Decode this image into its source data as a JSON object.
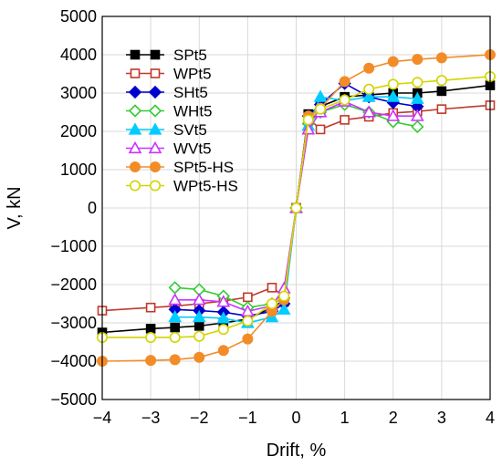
{
  "chart_data": {
    "type": "line",
    "title": "",
    "xlabel": "Drift, %",
    "ylabel": "V, kN",
    "xlim": [
      -4,
      4
    ],
    "ylim": [
      -5000,
      5000
    ],
    "xticks": [
      -4,
      -3,
      -2,
      -1,
      0,
      1,
      2,
      3,
      4
    ],
    "yticks": [
      -5000,
      -4000,
      -3000,
      -2000,
      -1000,
      0,
      1000,
      2000,
      3000,
      4000,
      5000
    ],
    "xtick_labels": [
      "−4",
      "−3",
      "−2",
      "−1",
      "0",
      "1",
      "2",
      "3",
      "4"
    ],
    "ytick_labels": [
      "−5000",
      "−4000",
      "−3000",
      "−2000",
      "−1000",
      "0",
      "1000",
      "2000",
      "3000",
      "4000",
      "5000"
    ],
    "grid": true,
    "legend_position": "top-left",
    "series": [
      {
        "name": "SPt5",
        "color": "#000000",
        "marker": "square-filled",
        "x": [
          -4,
          -3,
          -2.5,
          -2,
          -1.5,
          -1,
          -0.5,
          -0.25,
          0,
          0.25,
          0.5,
          1,
          1.5,
          2,
          2.5,
          3,
          4
        ],
        "y": [
          -3250,
          -3150,
          -3120,
          -3080,
          -3000,
          -2900,
          -2600,
          -2450,
          0,
          2450,
          2650,
          2900,
          2950,
          3000,
          3000,
          3050,
          3200
        ]
      },
      {
        "name": "WPt5",
        "color": "#c0392b",
        "marker": "square-open",
        "x": [
          -4,
          -3,
          -2.5,
          -2,
          -1.5,
          -1,
          -0.5,
          -0.25,
          0,
          0.25,
          0.5,
          1,
          1.5,
          2,
          2.5,
          3,
          4
        ],
        "y": [
          -2680,
          -2600,
          -2560,
          -2500,
          -2430,
          -2330,
          -2080,
          -2300,
          0,
          2350,
          2050,
          2300,
          2380,
          2480,
          2520,
          2580,
          2680
        ]
      },
      {
        "name": "SHt5",
        "color": "#0000cc",
        "marker": "diamond-filled",
        "x": [
          -2.5,
          -2,
          -1.5,
          -1,
          -0.5,
          -0.25,
          0,
          0.25,
          0.5,
          1,
          1.5,
          2,
          2.5
        ],
        "y": [
          -2650,
          -2680,
          -2720,
          -2820,
          -2700,
          -2500,
          0,
          2400,
          2700,
          3250,
          2900,
          2750,
          2650
        ]
      },
      {
        "name": "WHt5",
        "color": "#33cc33",
        "marker": "diamond-open",
        "x": [
          -2.5,
          -2,
          -1.5,
          -1,
          -0.5,
          -0.25,
          0,
          0.25,
          0.5,
          1,
          1.5,
          2,
          2.5
        ],
        "y": [
          -2080,
          -2130,
          -2300,
          -2600,
          -2500,
          -2350,
          0,
          2200,
          2500,
          2700,
          2500,
          2250,
          2120
        ]
      },
      {
        "name": "SVt5",
        "color": "#00ccff",
        "marker": "triangle-filled",
        "x": [
          -2.5,
          -2,
          -1.5,
          -1,
          -0.5,
          -0.25,
          0,
          0.25,
          0.5,
          1,
          1.5,
          2,
          2.5
        ],
        "y": [
          -2850,
          -2850,
          -2880,
          -3000,
          -2850,
          -2650,
          0,
          2150,
          2900,
          2800,
          2900,
          2900,
          2850
        ]
      },
      {
        "name": "WVt5",
        "color": "#cc33ff",
        "marker": "triangle-open",
        "x": [
          -2.5,
          -2,
          -1.5,
          -1,
          -0.5,
          -0.25,
          0,
          0.25,
          0.5,
          1,
          1.5,
          2,
          2.5
        ],
        "y": [
          -2400,
          -2400,
          -2450,
          -2700,
          -2550,
          -2100,
          0,
          2050,
          2500,
          2780,
          2500,
          2400,
          2400
        ]
      },
      {
        "name": "SPt5-HS",
        "color": "#f28c28",
        "marker": "circle-filled",
        "x": [
          -4,
          -3,
          -2.5,
          -2,
          -1.5,
          -1,
          -0.5,
          -0.25,
          0,
          0.25,
          0.5,
          1,
          1.5,
          2,
          2.5,
          3,
          4
        ],
        "y": [
          -4000,
          -3980,
          -3960,
          -3900,
          -3720,
          -3420,
          -2700,
          -2400,
          0,
          2400,
          2600,
          3300,
          3650,
          3820,
          3880,
          3920,
          4000
        ]
      },
      {
        "name": "WPt5-HS",
        "color": "#d4d400",
        "marker": "circle-open",
        "x": [
          -4,
          -3,
          -2.5,
          -2,
          -1.5,
          -1,
          -0.5,
          -0.25,
          0,
          0.25,
          0.5,
          1,
          1.5,
          2,
          2.5,
          3,
          4
        ],
        "y": [
          -3380,
          -3380,
          -3380,
          -3350,
          -3170,
          -2950,
          -2500,
          -2300,
          0,
          2300,
          2580,
          2820,
          3100,
          3230,
          3280,
          3330,
          3430
        ]
      }
    ]
  }
}
